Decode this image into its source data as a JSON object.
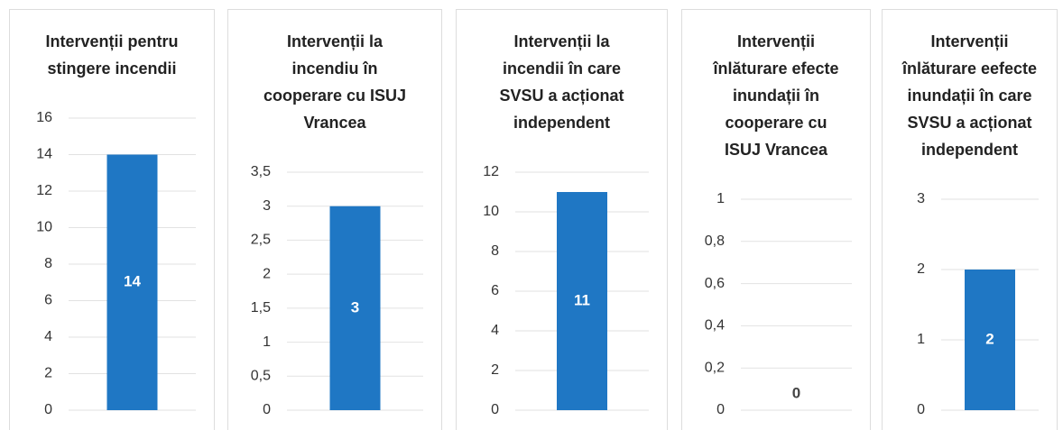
{
  "chart_data": [
    {
      "type": "bar",
      "title": "Intervenții pentru stingere incendii",
      "categories": [
        null
      ],
      "values": [
        14
      ],
      "color": "#1f77c4",
      "ylim": [
        0,
        16
      ],
      "yticks": [
        0,
        2,
        4,
        6,
        8,
        10,
        12,
        14,
        16
      ],
      "grid": true
    },
    {
      "type": "bar",
      "title": "Intervenții la incendiu în cooperare cu ISUJ Vrancea",
      "categories": [
        null
      ],
      "values": [
        3
      ],
      "color": "#1f77c4",
      "ylim": [
        0,
        3.5
      ],
      "yticks": [
        0,
        {
          "value": 0.5,
          "label": "0,5"
        },
        1,
        {
          "value": 1.5,
          "label": "1,5"
        },
        2,
        {
          "value": 2.5,
          "label": "2,5"
        },
        3,
        {
          "value": 3.5,
          "label": "3,5"
        }
      ],
      "grid": true
    },
    {
      "type": "bar",
      "title": "Intervenții la incendii în care SVSU a acționat independent",
      "categories": [
        null
      ],
      "values": [
        11
      ],
      "color": "#1f77c4",
      "ylim": [
        0,
        12
      ],
      "yticks": [
        0,
        2,
        4,
        6,
        8,
        10,
        12
      ],
      "grid": true
    },
    {
      "type": "bar",
      "title": "Intervenții înlăturare efecte inundații în cooperare cu ISUJ Vrancea",
      "categories": [
        null
      ],
      "values": [
        0
      ],
      "color": "#1f77c4",
      "ylim": [
        0,
        1
      ],
      "yticks": [
        0,
        {
          "value": 0.2,
          "label": "0,2"
        },
        {
          "value": 0.4,
          "label": "0,4"
        },
        {
          "value": 0.6,
          "label": "0,6"
        },
        {
          "value": 0.8,
          "label": "0,8"
        },
        1
      ],
      "grid": true
    },
    {
      "type": "bar",
      "title": "Intervenții înlăturare eefecte inundații în care SVSU a acționat independent",
      "categories": [
        null
      ],
      "values": [
        2
      ],
      "color": "#1f77c4",
      "ylim": [
        0,
        3
      ],
      "yticks": [
        0,
        1,
        2,
        3
      ],
      "grid": true
    }
  ]
}
